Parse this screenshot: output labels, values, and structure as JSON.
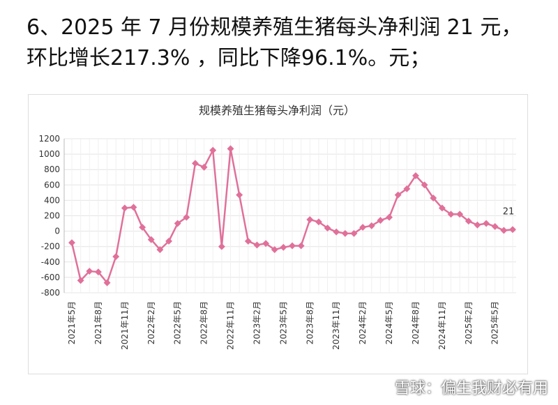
{
  "heading": "6、2025 年 7 月份规模养殖生猪每头净利润 21 元，环比增长217.3% ，同比下降96.1%。元；",
  "watermark": "雪球：偏生我财必有用",
  "chart_data": {
    "type": "line",
    "title": "规模养殖生猪每头净利润（元）",
    "categories": [
      "2021年5月",
      null,
      null,
      "2021年8月",
      null,
      null,
      "2021年11月",
      null,
      null,
      "2022年2月",
      null,
      null,
      "2022年5月",
      null,
      null,
      "2022年8月",
      null,
      null,
      "2022年11月",
      null,
      null,
      "2023年2月",
      null,
      null,
      "2023年5月",
      null,
      null,
      "2023年8月",
      null,
      null,
      "2023年11月",
      null,
      null,
      "2024年2月",
      null,
      null,
      "2024年5月",
      null,
      null,
      "2024年8月",
      null,
      null,
      "2024年11月",
      null,
      null,
      "2025年2月",
      null,
      null,
      "2025年5月",
      null,
      null
    ],
    "series": [
      {
        "name": "规模养殖生猪每头净利润",
        "color": "#e0709a",
        "values": [
          -150,
          -640,
          -520,
          -530,
          -670,
          -330,
          300,
          310,
          50,
          -110,
          -240,
          -130,
          100,
          180,
          880,
          830,
          1050,
          -200,
          1070,
          470,
          -130,
          -180,
          -160,
          -240,
          -210,
          -190,
          -190,
          150,
          120,
          40,
          -10,
          -30,
          -30,
          50,
          70,
          140,
          180,
          470,
          550,
          720,
          600,
          430,
          300,
          220,
          220,
          130,
          80,
          100,
          60,
          10,
          21
        ]
      }
    ],
    "ylim": [
      -800,
      1200
    ],
    "yticks": [
      -800,
      -600,
      -400,
      -200,
      0,
      200,
      400,
      600,
      800,
      1000,
      1200
    ],
    "grid": true
  }
}
